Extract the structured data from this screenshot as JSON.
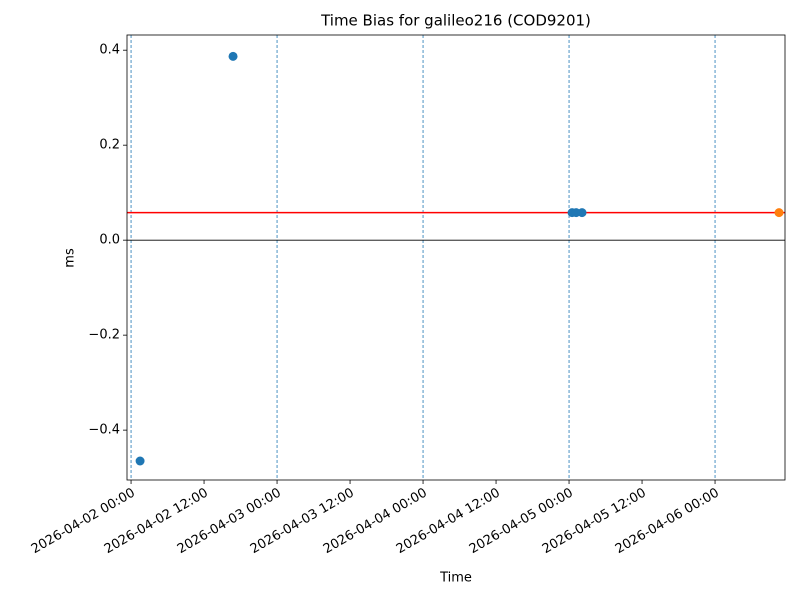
{
  "chart_data": {
    "type": "scatter",
    "title": "Time Bias for galileo216 (COD9201)",
    "x_label": "Time",
    "y_label": "ms",
    "series": [
      {
        "color": "#1f77b4",
        "x": [
          "2026-04-02 01:29",
          "2026-04-02 16:46",
          "2026-04-05 00:30",
          "2026-04-05 01:10",
          "2026-04-05 02:08"
        ],
        "values": [
          -0.465,
          0.387,
          0.058,
          0.058,
          0.058
        ]
      },
      {
        "color": "#ff7f0e",
        "x": [
          "2026-04-06 10:31"
        ],
        "values": [
          0.058
        ]
      }
    ],
    "hlines": [
      {
        "value": 0,
        "color": "#000000"
      },
      {
        "value": 0.058,
        "color": "#ff0000"
      }
    ],
    "vlines": {
      "color": "#1f77b4",
      "x": [
        "2026-04-02 00:00",
        "2026-04-03 00:00",
        "2026-04-04 00:00",
        "2026-04-05 00:00",
        "2026-04-06 00:00"
      ]
    },
    "xlim": [
      "2026-04-01 23:20",
      "2026-04-06 11:30"
    ],
    "xticks": [
      "2026-04-02 00:00",
      "2026-04-02 12:00",
      "2026-04-03 00:00",
      "2026-04-03 12:00",
      "2026-04-04 00:00",
      "2026-04-04 12:00",
      "2026-04-05 00:00",
      "2026-04-05 12:00",
      "2026-04-06 00:00"
    ],
    "ylim": [
      -0.505,
      0.432
    ],
    "yticks": [
      {
        "value": -0.4,
        "label": "−0.4"
      },
      {
        "value": -0.2,
        "label": "−0.2"
      },
      {
        "value": 0,
        "label": "0.0"
      },
      0.2,
      0.4
    ]
  }
}
